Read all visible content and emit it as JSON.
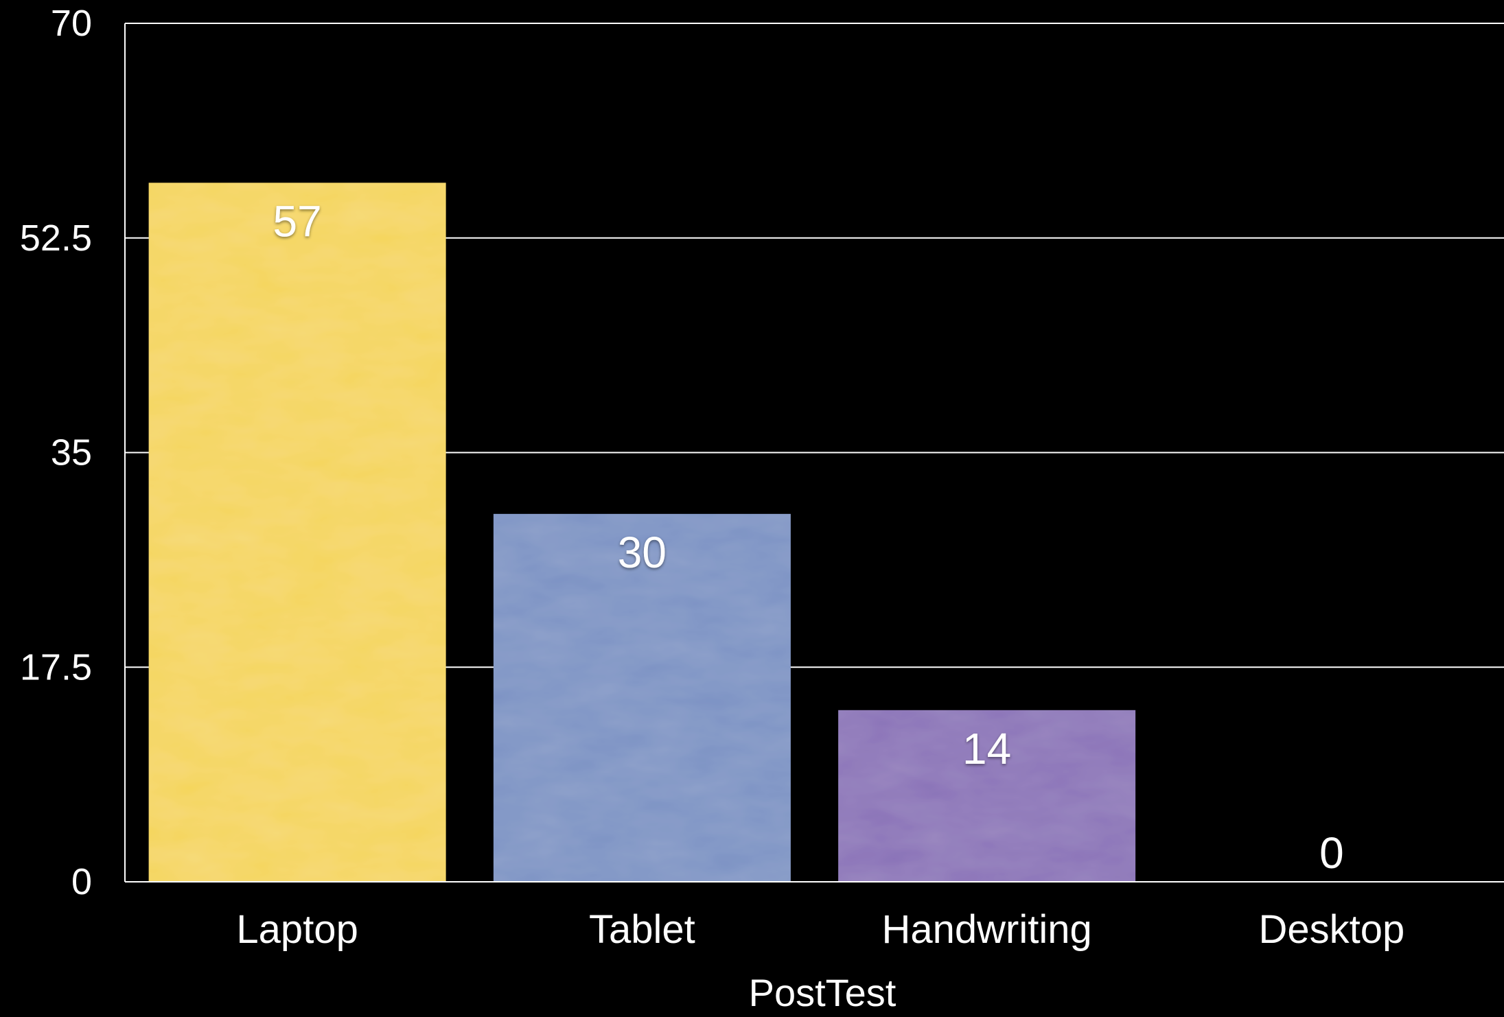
{
  "chart_data": {
    "type": "bar",
    "title": "",
    "xlabel": "PostTest",
    "ylabel": "",
    "categories": [
      "Laptop",
      "Tablet",
      "Handwriting",
      "Desktop"
    ],
    "values": [
      57,
      30,
      14,
      0
    ],
    "value_labels": [
      "57",
      "30",
      "14",
      "0"
    ],
    "ylim": [
      0,
      70
    ],
    "yticks": [
      0,
      17.5,
      35,
      52.5,
      70
    ],
    "ytick_labels": [
      "0",
      "17.5",
      "35",
      "52.5",
      "70"
    ],
    "grid": true,
    "legend": "none",
    "colors": [
      "#f5d65c",
      "#7b93c4",
      "#8a72b8",
      "#9a9a9a"
    ],
    "background": "#000000",
    "axis_color": "#ffffff"
  }
}
